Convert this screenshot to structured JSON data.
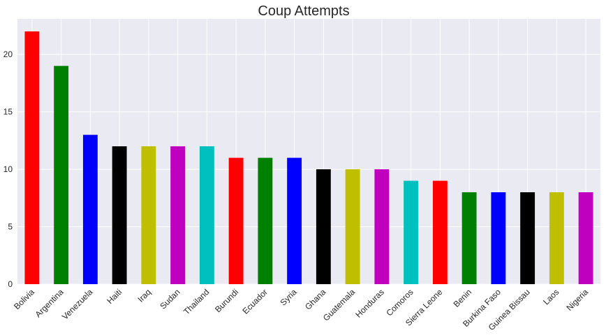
{
  "chart_data": {
    "type": "bar",
    "title": "Coup Attempts",
    "xlabel": "",
    "ylabel": "",
    "categories": [
      "Bolivia",
      "Argentina",
      "Venezuela",
      "Haiti",
      "Iraq",
      "Sudan",
      "Thailand",
      "Burundi",
      "Ecuador",
      "Syria",
      "Ghana",
      "Guatemala",
      "Honduras",
      "Comoros",
      "Sierra Leone",
      "Benin",
      "Burkina Faso",
      "Guinea Bissau",
      "Laos",
      "Nigeria"
    ],
    "values": [
      22,
      19,
      13,
      12,
      12,
      12,
      12,
      11,
      11,
      11,
      10,
      10,
      10,
      9,
      9,
      8,
      8,
      8,
      8,
      8
    ],
    "colors": [
      "#ff0000",
      "#008000",
      "#0000ff",
      "#000000",
      "#bfbf00",
      "#bf00bf",
      "#00bfbf",
      "#ff0000",
      "#008000",
      "#0000ff",
      "#000000",
      "#bfbf00",
      "#bf00bf",
      "#00bfbf",
      "#ff0000",
      "#008000",
      "#0000ff",
      "#000000",
      "#bfbf00",
      "#bf00bf"
    ],
    "ylim": [
      0,
      23.1
    ],
    "yticks": [
      0,
      5,
      10,
      15,
      20
    ],
    "grid": true,
    "background": "#eaeaf2"
  }
}
